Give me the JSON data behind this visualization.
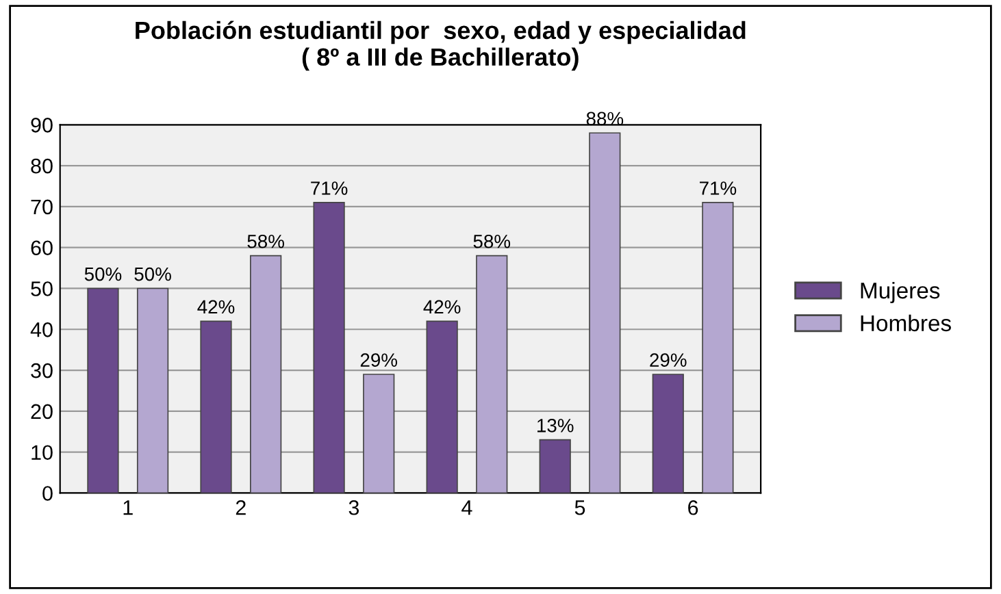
{
  "chart_data": {
    "type": "bar",
    "title": "Población estudiantil por  sexo, edad y especialidad\n( 8º a III de Bachillerato)",
    "categories": [
      "1",
      "2",
      "3",
      "4",
      "5",
      "6"
    ],
    "series": [
      {
        "name": "Mujeres",
        "color": "#6a4a8c",
        "values": [
          50,
          42,
          71,
          42,
          13,
          29
        ],
        "value_labels": [
          "50%",
          "42%",
          "71%",
          "42%",
          "13%",
          "29%"
        ]
      },
      {
        "name": "Hombres",
        "color": "#b4a7d0",
        "values": [
          50,
          58,
          29,
          58,
          88,
          71
        ],
        "value_labels": [
          "50%",
          "58%",
          "29%",
          "58%",
          "88%",
          "71%"
        ]
      }
    ],
    "ylim": [
      0,
      90
    ],
    "yticks": [
      0,
      10,
      20,
      30,
      40,
      50,
      60,
      70,
      80,
      90
    ],
    "grid": "y",
    "legend": "right"
  }
}
